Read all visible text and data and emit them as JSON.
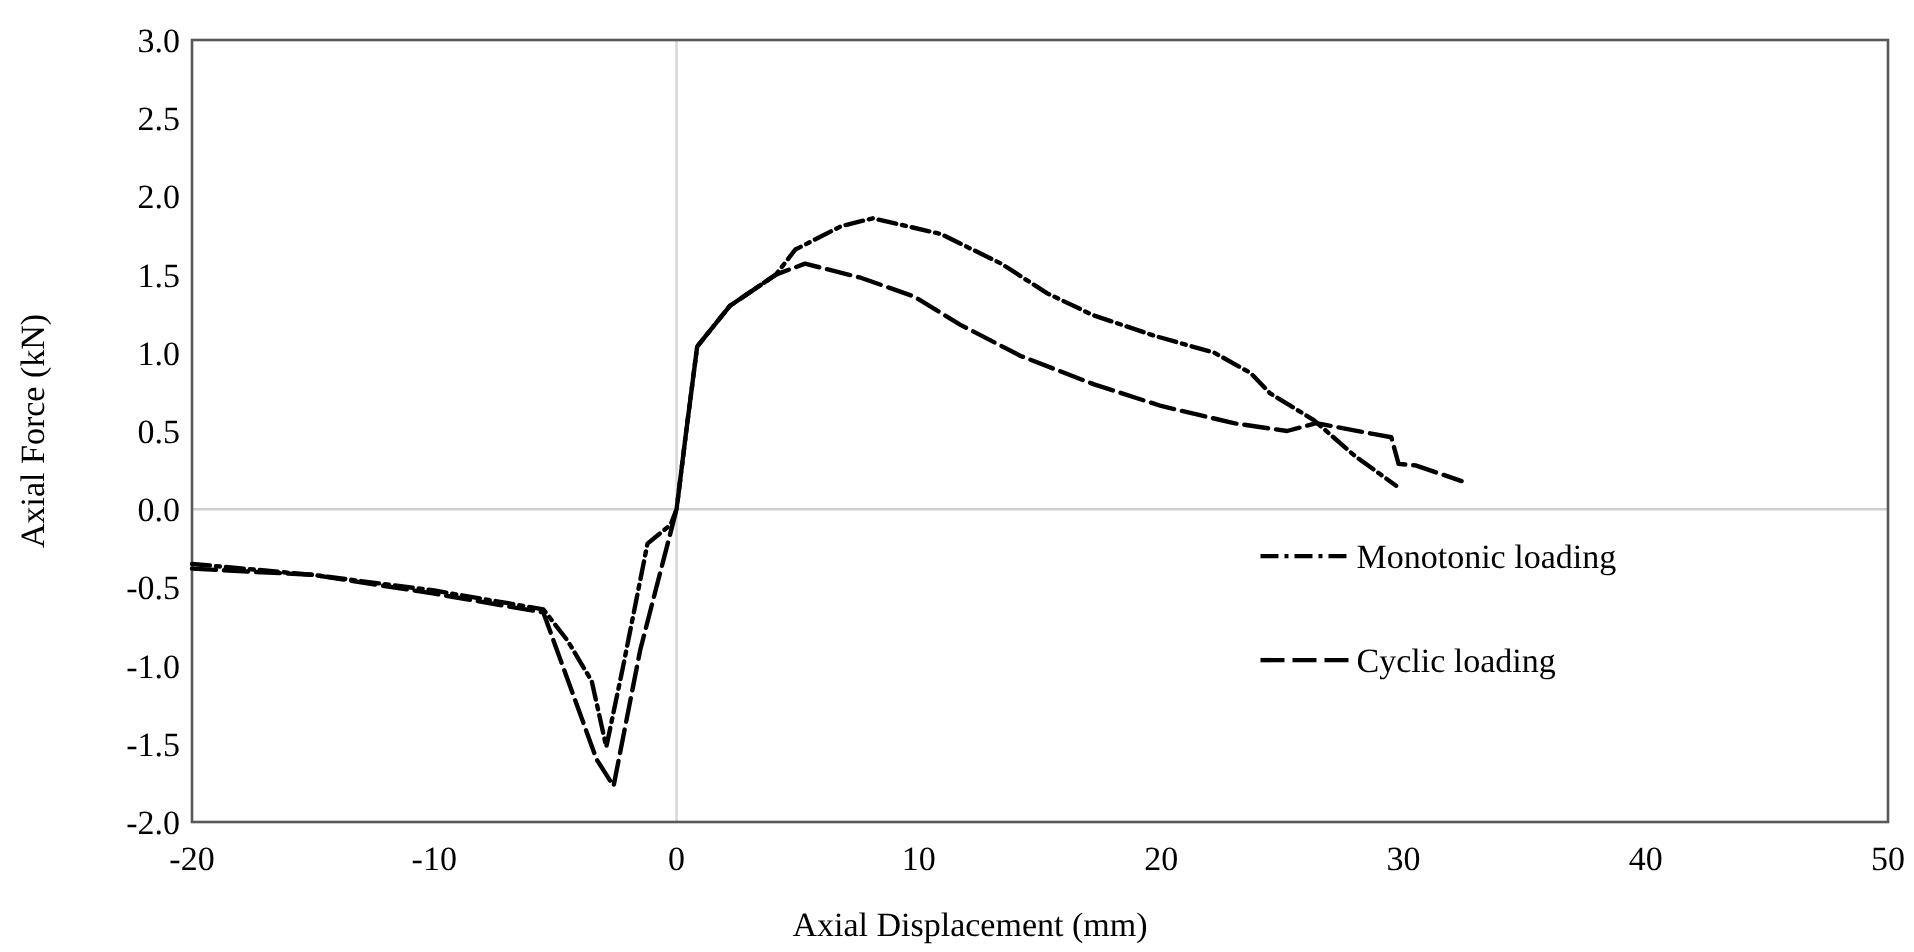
{
  "chart_data": {
    "type": "line",
    "xlabel": "Axial Displacement (mm)",
    "ylabel": "Axial Force (kN)",
    "xlim": [
      -20,
      50
    ],
    "xticks": [
      -20,
      -10,
      0,
      10,
      20,
      30,
      40,
      50
    ],
    "ylim": [
      -2,
      3
    ],
    "yticks": [
      {
        "value": -2,
        "label": "-2.0"
      },
      {
        "value": -1.5,
        "label": "-1.5"
      },
      {
        "value": -1,
        "label": "-1.0"
      },
      {
        "value": -0.5,
        "label": "-0.5"
      },
      {
        "value": 0,
        "label": "0.0"
      },
      {
        "value": 0.5,
        "label": "0.5"
      },
      {
        "value": 1,
        "label": "1.0"
      },
      {
        "value": 1.5,
        "label": "1.5"
      },
      {
        "value": 2,
        "label": "2.0"
      },
      {
        "value": 2.5,
        "label": "2.5"
      },
      {
        "value": 3,
        "label": "3.0"
      }
    ],
    "grid": false,
    "legend": "right",
    "marker": "none",
    "ref_lines": [
      {
        "axis": "x",
        "value": 0,
        "color": "#d9d9d9"
      },
      {
        "axis": "y",
        "value": 0,
        "color": "#cfcfcf"
      }
    ],
    "series": [
      {
        "name": "Monotonic loading",
        "color": "#000000",
        "line_style": "dashdot",
        "x": [
          -20,
          -15,
          -10,
          -5.5,
          -4.5,
          -3.5,
          -2.9,
          -2.2,
          -1.2,
          -0.25,
          0,
          0.4,
          0.85,
          2.2,
          4.1,
          4.9,
          6.8,
          8.1,
          10.9,
          13.4,
          15.3,
          17.2,
          19.7,
          22.2,
          23.7,
          24.5,
          26.3,
          28,
          29.7
        ],
        "values": [
          -0.35,
          -0.42,
          -0.52,
          -0.64,
          -0.84,
          -1.1,
          -1.52,
          -1.0,
          -0.22,
          -0.1,
          0,
          0.5,
          1.04,
          1.3,
          1.5,
          1.66,
          1.81,
          1.86,
          1.76,
          1.57,
          1.38,
          1.24,
          1.11,
          1.0,
          0.87,
          0.74,
          0.57,
          0.34,
          0.15
        ]
      },
      {
        "name": "Cyclic loading",
        "color": "#000000",
        "line_style": "dashed",
        "x": [
          -20,
          -15,
          -10,
          -5.5,
          -3.3,
          -2.6,
          -1.5,
          -0.5,
          0,
          0.4,
          0.85,
          2.2,
          4.1,
          5.3,
          7.6,
          9.8,
          11.7,
          14.2,
          17.2,
          20,
          23,
          25.2,
          26.4,
          28.8,
          29.5,
          29.8,
          30.5,
          32.4
        ],
        "values": [
          -0.38,
          -0.42,
          -0.54,
          -0.66,
          -1.6,
          -1.77,
          -0.9,
          -0.3,
          0,
          0.5,
          1.04,
          1.3,
          1.5,
          1.57,
          1.48,
          1.36,
          1.18,
          0.98,
          0.8,
          0.66,
          0.55,
          0.5,
          0.55,
          0.48,
          0.46,
          0.29,
          0.28,
          0.18
        ]
      }
    ]
  }
}
